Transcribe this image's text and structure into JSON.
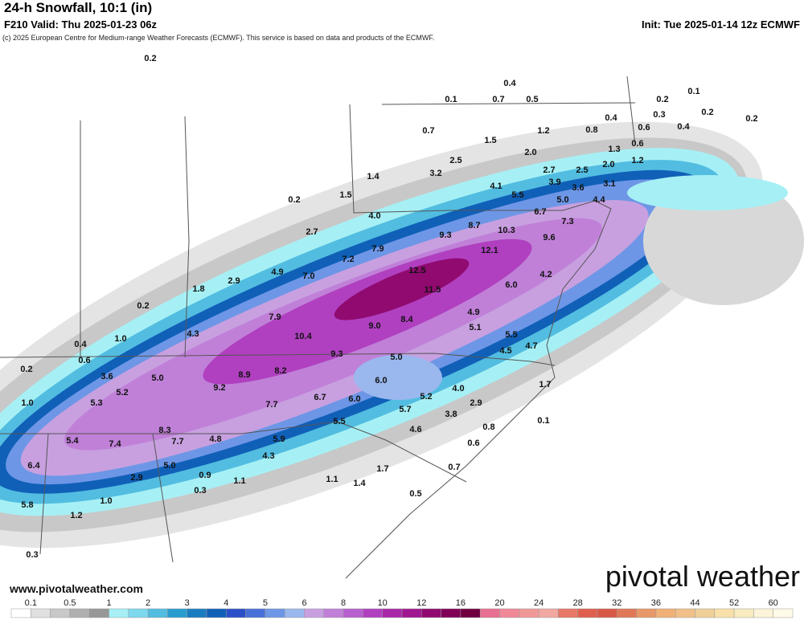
{
  "header": {
    "title": "24-h Snowfall, 10:1 (in)",
    "valid": "F210 Valid: Thu 2025-01-23 06z",
    "init": "Init: Tue 2025-01-14 12z ECMWF",
    "credit": "(c) 2025 European Centre for Medium-range Weather Forecasts (ECMWF). This service is based on data and products of the ECMWF."
  },
  "map": {
    "labels": [
      "0.2",
      "0.4",
      "0.1",
      "0.7",
      "0.5",
      "0.1",
      "0.2",
      "0.3",
      "0.2",
      "0.4",
      "0.6",
      "0.4",
      "0.2",
      "0.7",
      "1.2",
      "0.8",
      "1.5",
      "0.6",
      "1.3",
      "2.0",
      "1.2",
      "2.0",
      "2.5",
      "2.7",
      "2.5",
      "1.4",
      "3.2",
      "3.1",
      "4.1",
      "3.9",
      "1.5",
      "0.2",
      "5.5",
      "3.6",
      "5.0",
      "4.4",
      "4.0",
      "6.7",
      "7.3",
      "8.7",
      "2.7",
      "10.3",
      "9.3",
      "9.6",
      "7.9",
      "12.1",
      "7.2",
      "4.9",
      "12.5",
      "7.0",
      "2.9",
      "4.2",
      "1.8",
      "6.0",
      "11.5",
      "0.2",
      "4.9",
      "7.9",
      "8.4",
      "5.1",
      "9.0",
      "4.3",
      "10.4",
      "5.5",
      "1.0",
      "0.4",
      "4.7",
      "9.3",
      "5.0",
      "4.5",
      "0.6",
      "0.2",
      "8.2",
      "3.6",
      "5.0",
      "8.9",
      "6.0",
      "4.0",
      "1.7",
      "9.2",
      "5.2",
      "6.7",
      "6.0",
      "5.2",
      "2.9",
      "1.0",
      "5.3",
      "7.7",
      "5.7",
      "3.8",
      "0.1",
      "5.5",
      "4.6",
      "8.3",
      "0.8",
      "4.8",
      "5.9",
      "5.4",
      "7.4",
      "7.7",
      "0.6",
      "4.3",
      "6.4",
      "5.0",
      "1.7",
      "0.7",
      "0.9",
      "2.9",
      "1.1",
      "1.1",
      "1.4",
      "0.3",
      "0.5",
      "1.0",
      "5.8",
      "1.2",
      "0.3"
    ]
  },
  "footer": {
    "url": "www.pivotalweather.com",
    "logo": "pivotal weather"
  },
  "colorbar": {
    "labels": [
      "0.1",
      "0.5",
      "1",
      "2",
      "3",
      "4",
      "5",
      "6",
      "8",
      "10",
      "12",
      "16",
      "20",
      "24",
      "28",
      "32",
      "36",
      "44",
      "52",
      "60"
    ],
    "colors": [
      "#ffffff",
      "#e0e0e0",
      "#c8c8c8",
      "#b0b0b0",
      "#989898",
      "#a6f0f5",
      "#7ed8ee",
      "#52bde0",
      "#2a9dd0",
      "#1a7cc0",
      "#1060b8",
      "#2a4fc8",
      "#4870d8",
      "#6e96e6",
      "#9ab8ee",
      "#c8a0e0",
      "#c080d8",
      "#b860d0",
      "#b040c0",
      "#a828a8",
      "#a01890",
      "#900a70",
      "#800058",
      "#700040",
      "#e87090",
      "#f08898",
      "#f09898",
      "#f0a8a0",
      "#e87868",
      "#e06050",
      "#d85848",
      "#e07858",
      "#e89868",
      "#f0b078",
      "#f0c088",
      "#f0d098",
      "#f8e0a8",
      "#f8ecc0",
      "#fcf4d8",
      "#fffae8"
    ]
  }
}
